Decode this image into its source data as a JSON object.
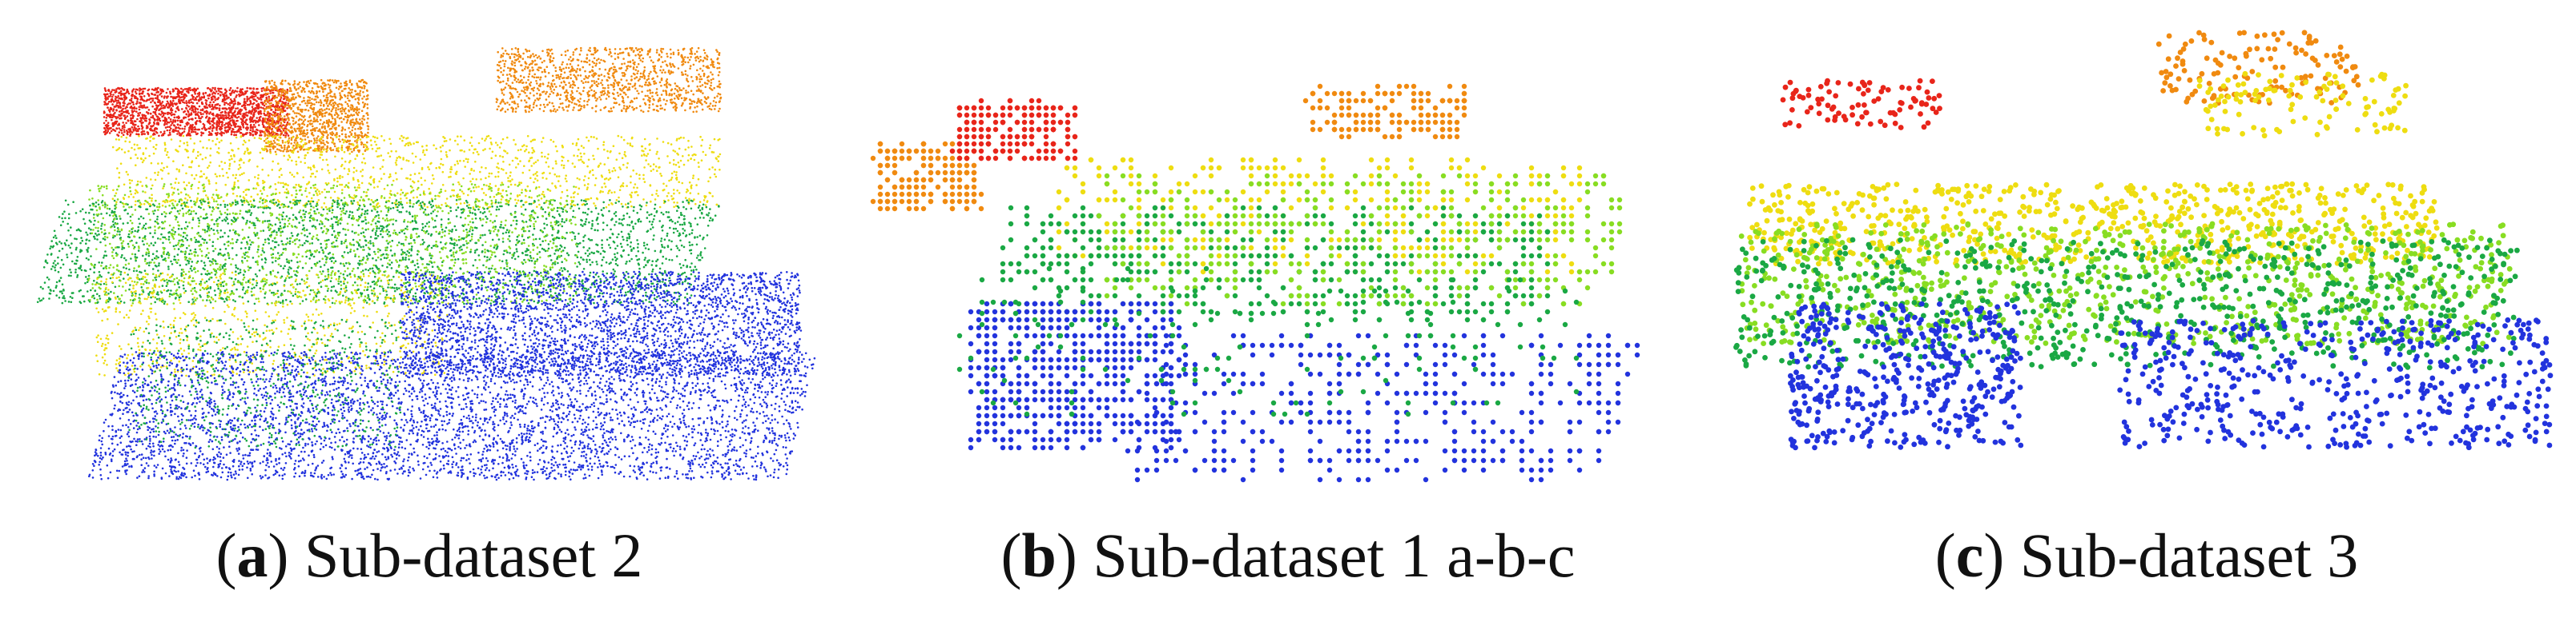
{
  "panels": [
    {
      "id": "a",
      "letter": "a",
      "text": "Sub-dataset 2",
      "density": "dense"
    },
    {
      "id": "b",
      "letter": "b",
      "text": "Sub-dataset 1 a-b-c",
      "density": "grid"
    },
    {
      "id": "c",
      "letter": "c",
      "text": "Sub-dataset 3",
      "density": "sparse"
    }
  ],
  "colors": {
    "low": "#2233dd",
    "lowmid": "#1aa844",
    "mid": "#88dd22",
    "highmid": "#eedd11",
    "high": "#f08a10",
    "top": "#e8251a"
  }
}
